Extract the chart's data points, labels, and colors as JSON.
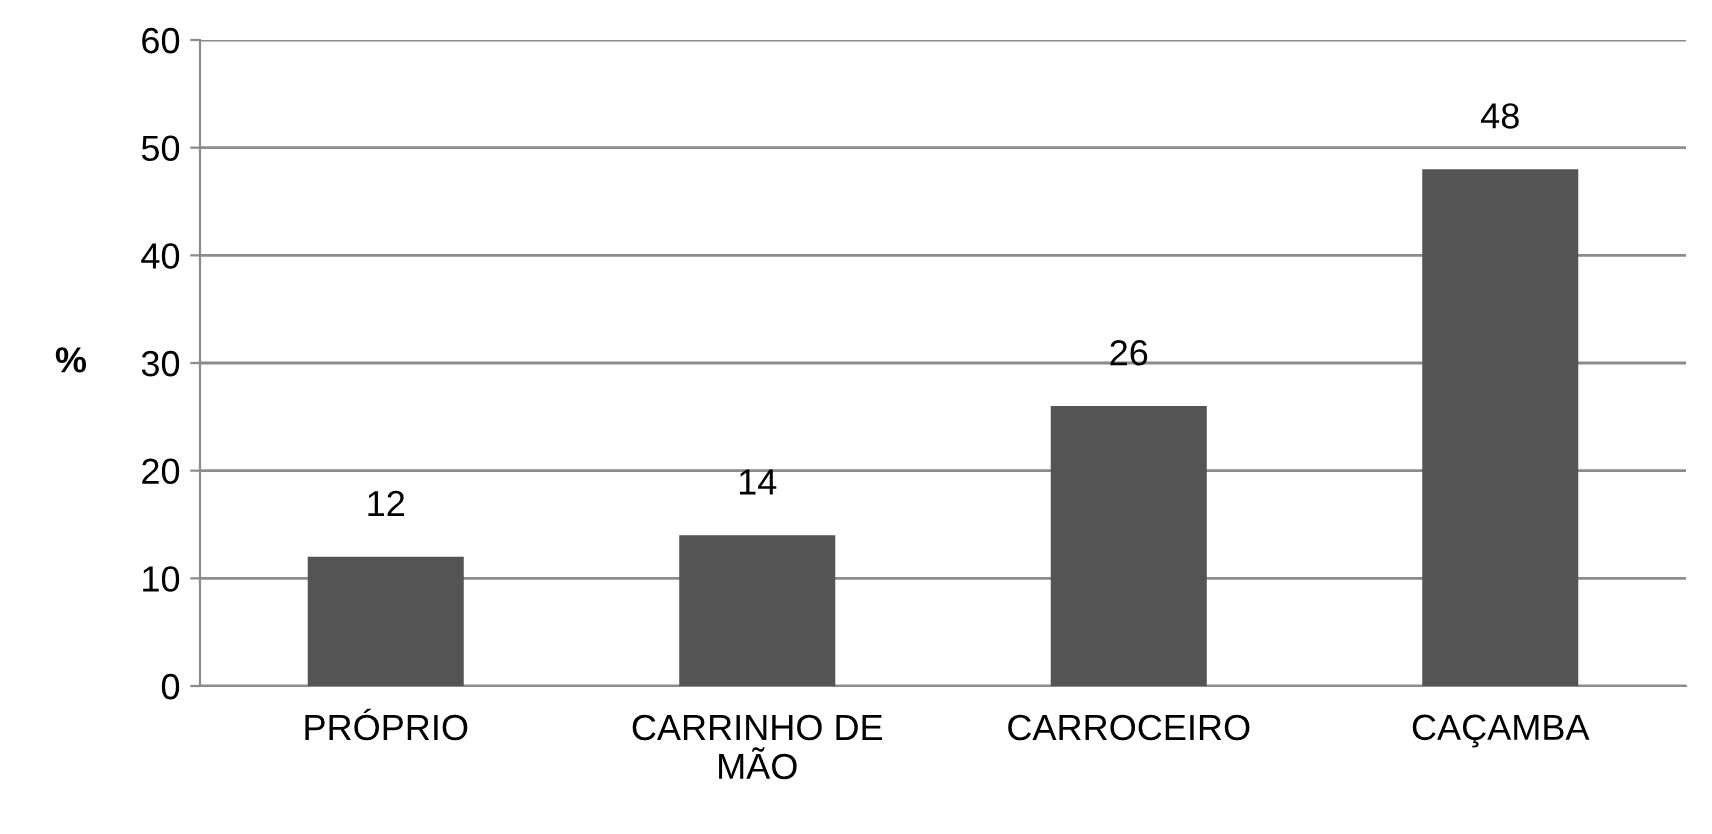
{
  "chart_data": {
    "type": "bar",
    "ylabel": "%",
    "categories": [
      "PRÓPRIO",
      "CARRINHO DE MÃO",
      "CARROCEIRO",
      "CAÇAMBA"
    ],
    "values": [
      12,
      14,
      26,
      48
    ],
    "color": "#545454",
    "ylim": [
      0,
      60
    ],
    "yticks": [
      0,
      10,
      20,
      30,
      40,
      50,
      60
    ],
    "grid": "y",
    "data_labels": true
  }
}
